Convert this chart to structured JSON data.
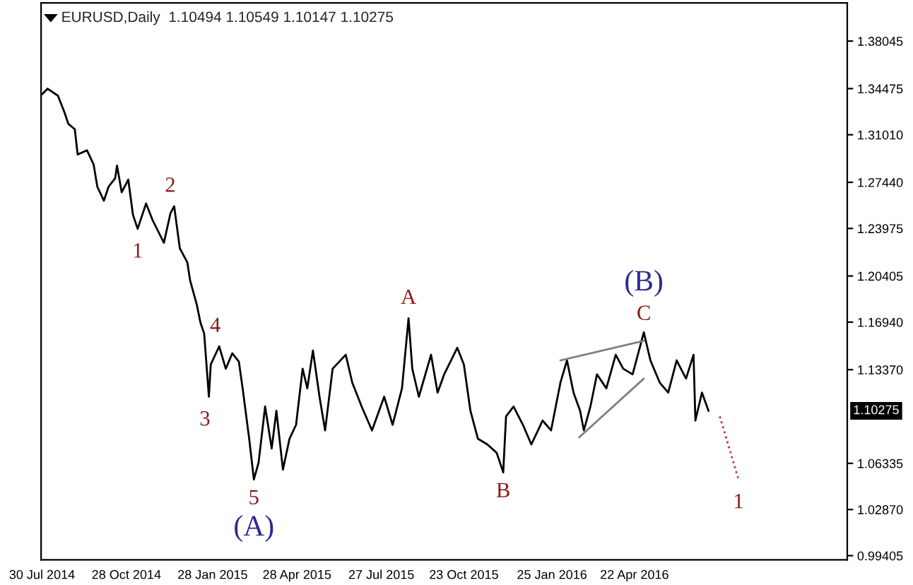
{
  "chart_data": {
    "type": "line",
    "title": "EURUSD,Daily  1.10494 1.10549 1.10147 1.10275",
    "xlim": [
      "2014-07-29",
      "2016-12-05"
    ],
    "xticks": [
      {
        "value": "2014-07-30",
        "label": "30 Jul 2014"
      },
      {
        "value": "2014-10-28",
        "label": "28 Oct 2014"
      },
      {
        "value": "2015-01-28",
        "label": "28 Jan 2015"
      },
      {
        "value": "2015-04-28",
        "label": "28 Apr 2015"
      },
      {
        "value": "2015-07-27",
        "label": "27 Jul 2015"
      },
      {
        "value": "2015-10-23",
        "label": "23 Oct 2015"
      },
      {
        "value": "2016-01-25",
        "label": "25 Jan 2016"
      },
      {
        "value": "2016-04-22",
        "label": "22 Apr 2016"
      }
    ],
    "ylim": [
      0.9909,
      1.4091
    ],
    "yticks": [
      1.38045,
      1.34475,
      {
        "value": 1.3101,
        "label": "1.31010"
      },
      {
        "value": 1.2744,
        "label": "1.27440"
      },
      1.23975,
      1.20405,
      {
        "value": 1.1694,
        "label": "1.16940"
      },
      {
        "value": 1.1337,
        "label": "1.13370"
      },
      1.06335,
      {
        "value": 1.0287,
        "label": "1.02870"
      },
      0.99405
    ],
    "grid": false,
    "legend": false,
    "marker": "none",
    "series": [
      {
        "color": "#000000",
        "line_style": "solid",
        "x": [
          "2014-07-30",
          "2014-08-05",
          "2014-08-16",
          "2014-08-23",
          "2014-08-27",
          "2014-09-03",
          "2014-09-06",
          "2014-09-16",
          "2014-09-23",
          "2014-09-27",
          "2014-10-04",
          "2014-10-09",
          "2014-10-16",
          "2014-10-18",
          "2014-10-23",
          "2014-10-30",
          "2014-11-04",
          "2014-11-09",
          "2014-11-18",
          "2014-11-25",
          "2014-12-07",
          "2014-12-14",
          "2014-12-18",
          "2014-12-24",
          "2015-01-01",
          "2015-01-04",
          "2015-01-11",
          "2015-01-15",
          "2015-01-19",
          "2015-01-24",
          "2015-01-26",
          "2015-02-04",
          "2015-02-11",
          "2015-02-18",
          "2015-02-25",
          "2015-03-01",
          "2015-03-08",
          "2015-03-13",
          "2015-03-18",
          "2015-03-25",
          "2015-04-01",
          "2015-04-06",
          "2015-04-13",
          "2015-04-20",
          "2015-04-27",
          "2015-05-04",
          "2015-05-09",
          "2015-05-15",
          "2015-05-22",
          "2015-05-28",
          "2015-06-05",
          "2015-06-19",
          "2015-06-26",
          "2015-07-06",
          "2015-07-17",
          "2015-07-30",
          "2015-08-08",
          "2015-08-18",
          "2015-08-25",
          "2015-08-29",
          "2015-09-05",
          "2015-09-18",
          "2015-09-25",
          "2015-10-02",
          "2015-10-16",
          "2015-10-23",
          "2015-10-30",
          "2015-11-07",
          "2015-11-17",
          "2015-11-27",
          "2015-12-04",
          "2015-12-07",
          "2015-12-15",
          "2015-12-25",
          "2016-01-03",
          "2016-01-15",
          "2016-01-24",
          "2016-02-03",
          "2016-02-10",
          "2016-02-17",
          "2016-02-24",
          "2016-02-28",
          "2016-03-06",
          "2016-03-13",
          "2016-03-23",
          "2016-04-02",
          "2016-04-10",
          "2016-04-20",
          "2016-05-02",
          "2016-05-09",
          "2016-05-19",
          "2016-05-28",
          "2016-06-06",
          "2016-06-16",
          "2016-06-24",
          "2016-06-26",
          "2016-07-03",
          "2016-07-10"
        ],
        "values": [
          1.3405,
          1.3447,
          1.3394,
          1.3268,
          1.3184,
          1.3142,
          1.2953,
          1.2984,
          1.2879,
          1.2711,
          1.2606,
          1.2711,
          1.2774,
          1.2869,
          1.2669,
          1.2764,
          1.2501,
          1.2395,
          1.2585,
          1.2459,
          1.229,
          1.2511,
          1.2564,
          1.2248,
          1.2143,
          1.2006,
          1.1828,
          1.1691,
          1.1607,
          1.1134,
          1.1376,
          1.1512,
          1.1344,
          1.146,
          1.1397,
          1.1197,
          1.0818,
          1.0513,
          1.0639,
          1.106,
          1.0745,
          1.1028,
          1.0587,
          1.0818,
          1.0923,
          1.1344,
          1.1197,
          1.1481,
          1.1134,
          1.0881,
          1.1344,
          1.1449,
          1.1239,
          1.106,
          1.0881,
          1.1134,
          1.0923,
          1.1197,
          1.1723,
          1.1344,
          1.1134,
          1.1449,
          1.1165,
          1.1302,
          1.1502,
          1.1376,
          1.1028,
          1.0818,
          1.0776,
          1.0713,
          1.0566,
          1.0986,
          1.106,
          1.0923,
          1.0776,
          1.0955,
          1.0881,
          1.1239,
          1.1407,
          1.1165,
          1.1028,
          1.0881,
          1.106,
          1.1302,
          1.1197,
          1.1449,
          1.1344,
          1.1302,
          1.1617,
          1.1407,
          1.1239,
          1.1165,
          1.1407,
          1.127,
          1.1449,
          1.0955,
          1.1165,
          1.1028
        ]
      },
      {
        "color": "#808080",
        "line_style": "solid",
        "x": [
          "2016-02-03",
          "2016-05-02"
        ],
        "values": [
          1.1407,
          1.1554
        ]
      },
      {
        "color": "#808080",
        "line_style": "solid",
        "x": [
          "2016-02-23",
          "2016-05-02"
        ],
        "values": [
          1.0829,
          1.127
        ]
      },
      {
        "color": "#c0303a",
        "line_style": "dotted",
        "x": [
          "2016-07-22",
          "2016-08-11"
        ],
        "values": [
          1.0986,
          1.0513
        ]
      }
    ],
    "annotations": [
      {
        "text": "1",
        "x": "2014-11-09",
        "y": 1.2395
      },
      {
        "text": "2",
        "x": "2014-12-18",
        "y": 1.2564
      },
      {
        "text": "3",
        "x": "2015-01-24",
        "y": 1.1134
      },
      {
        "text": "4",
        "x": "2015-02-04",
        "y": 1.1512
      },
      {
        "text": "5",
        "x": "2015-03-13",
        "y": 1.0513
      },
      {
        "text": "(A)",
        "x": "2015-03-13",
        "y": 1.0513
      },
      {
        "text": "A",
        "x": "2015-08-25",
        "y": 1.1723
      },
      {
        "text": "B",
        "x": "2015-12-04",
        "y": 1.0566
      },
      {
        "text": "(B)",
        "x": "2016-05-02",
        "y": 1.1617
      },
      {
        "text": "C",
        "x": "2016-05-02",
        "y": 1.1617
      },
      {
        "text": "1",
        "x": "2016-08-11",
        "y": 1.0513
      },
      "1.10275"
    ]
  }
}
